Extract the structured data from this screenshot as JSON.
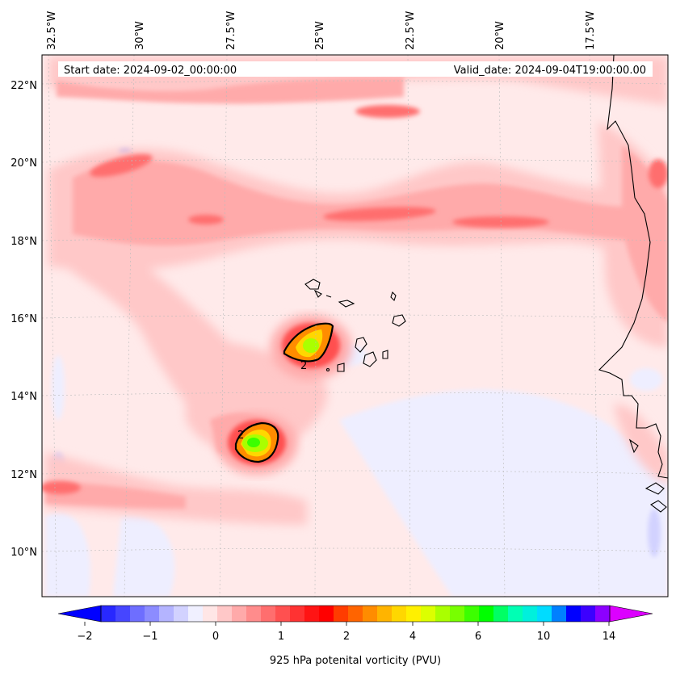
{
  "map": {
    "start_date": "Start date: 2024-09-02_00:00:00",
    "valid_date": "Valid_date: 2024-09-04T19:00:00.00",
    "lon_labels": [
      "32.5°W",
      "30°W",
      "27.5°W",
      "25°W",
      "22.5°W",
      "20°W",
      "17.5°W"
    ],
    "lat_labels": [
      "22°N",
      "20°N",
      "18°N",
      "16°N",
      "14°N",
      "12°N",
      "10°N"
    ],
    "contour_labels": [
      "2",
      "2"
    ]
  },
  "colorbar": {
    "label": "925 hPa potenital vorticity (PVU)",
    "ticks": [
      "−2",
      "−1",
      "0",
      "1",
      "2",
      "4",
      "6",
      "10",
      "14"
    ],
    "colors": [
      "#0000ff",
      "#2828ff",
      "#4646ff",
      "#6e6eff",
      "#8c8cff",
      "#b4b4ff",
      "#d2d2ff",
      "#f0f0ff",
      "#ffe6e6",
      "#ffc8c8",
      "#ffaaaa",
      "#ff8c8c",
      "#ff6e6e",
      "#ff5050",
      "#ff3232",
      "#ff1414",
      "#ff0000",
      "#ff3c00",
      "#ff6400",
      "#ff8c00",
      "#ffb400",
      "#ffd700",
      "#fff000",
      "#dcff00",
      "#aaff00",
      "#78ff00",
      "#3cff00",
      "#00ff00",
      "#00ff64",
      "#00ffb4",
      "#00f0dc",
      "#00dcff",
      "#0080ff",
      "#0000ff",
      "#3c00ff",
      "#8c00ff",
      "#dc00ff"
    ]
  },
  "fields": {
    "background_color": "#ffeaea",
    "low_pv_color": "#eeeeff",
    "contour_color": "#000000"
  }
}
